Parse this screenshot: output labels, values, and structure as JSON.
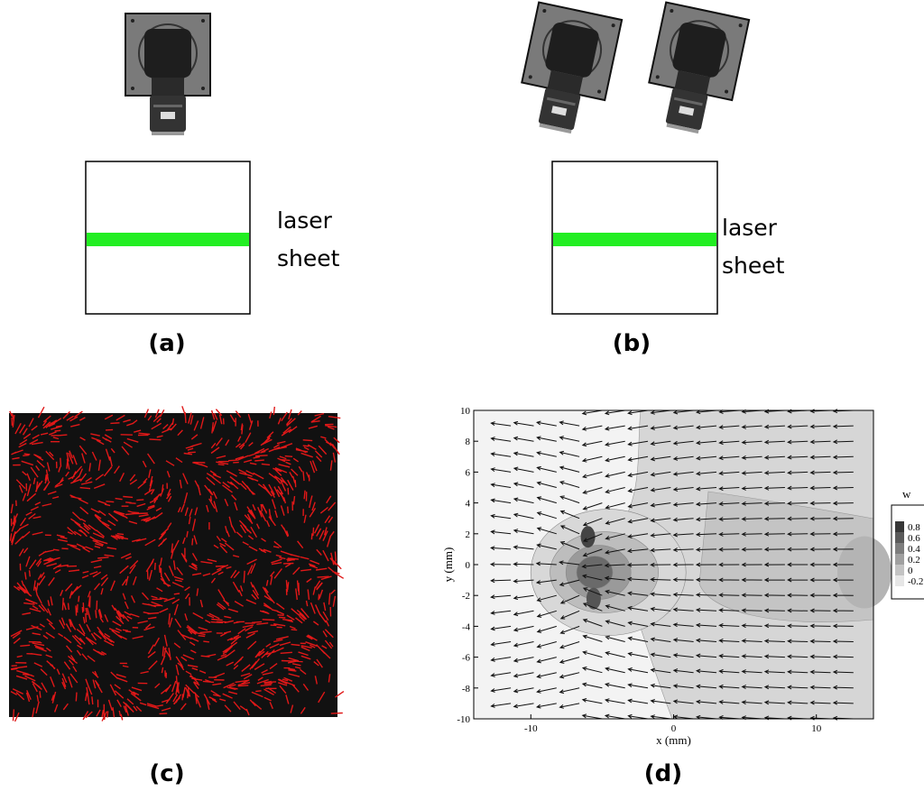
{
  "panels": [
    {
      "label": "(a)",
      "annotation": [
        "laser",
        "sheet"
      ]
    },
    {
      "label": "(b)",
      "annotation": [
        "laser",
        "sheet"
      ]
    },
    {
      "label": "(c)"
    },
    {
      "label": "(d)"
    }
  ],
  "plot": {
    "xlabel": "x (mm)",
    "ylabel": "y (mm)",
    "xlim": [
      -14,
      14
    ],
    "ylim": [
      -10,
      10
    ],
    "xticks": [
      -10,
      0,
      10
    ],
    "yticks": [
      10,
      8,
      6,
      4,
      2,
      0,
      -2,
      -4,
      -6,
      -8,
      -10
    ],
    "legend": {
      "title": "w",
      "ticks": [
        0.8,
        0.6,
        0.4,
        0.2,
        0,
        -0.2
      ]
    }
  }
}
